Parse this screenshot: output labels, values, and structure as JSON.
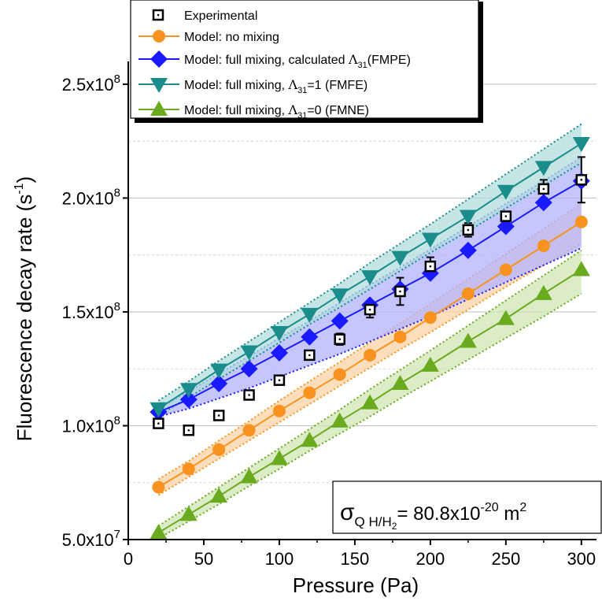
{
  "chart_data": {
    "type": "scatter",
    "xlabel": "Pressure (Pa)",
    "ylabel_main": "Fluorescence decay rate (s",
    "ylabel_sup": "-1",
    "ylabel_close": ")",
    "xlim": [
      0,
      310
    ],
    "ylim": [
      50000000.0,
      260000000.0
    ],
    "x_ticks": [
      0,
      50,
      100,
      150,
      200,
      250,
      300
    ],
    "x_tick_labels": [
      "0",
      "50",
      "100",
      "150",
      "200",
      "250",
      "300"
    ],
    "y_ticks": [
      50000000.0,
      100000000.0,
      150000000.0,
      200000000.0,
      250000000.0
    ],
    "y_tick_mantissa": [
      "5.0x10",
      "1.0x10",
      "1.5x10",
      "2.0x10",
      "2.5x10"
    ],
    "y_tick_exponent": [
      "7",
      "8",
      "8",
      "8",
      "8"
    ],
    "grid_major": true,
    "grid_minor": true,
    "legend_position": "top",
    "annotation": {
      "sigma": "σ",
      "subscript": "Q H/H",
      "subscript_2": "2",
      "equals": "= 80.8x10",
      "exponent": "-20",
      "unit": " m",
      "unit_exp": "2"
    },
    "series": [
      {
        "name": "Experimental",
        "legend_parts": [
          "Experimental"
        ],
        "marker": "square-open",
        "color": "#000000",
        "x": [
          20,
          40,
          60,
          80,
          100,
          120,
          140,
          160,
          180,
          200,
          225,
          250,
          275,
          300
        ],
        "y": [
          101000000.0,
          98000000.0,
          104500000.0,
          113500000.0,
          120000000.0,
          131000000.0,
          138000000.0,
          151000000.0,
          159000000.0,
          170000000.0,
          186000000.0,
          192000000.0,
          204000000.0,
          208000000.0
        ],
        "yerr": [
          1000000.0,
          500000.0,
          1000000.0,
          1500000.0,
          2000000.0,
          2000000.0,
          2500000.0,
          3500000.0,
          6000000.0,
          4000000.0,
          3000000.0,
          2000000.0,
          4000000.0,
          10000000.0
        ]
      },
      {
        "name": "Model: no mixing",
        "legend_parts": [
          "Model: no mixing"
        ],
        "marker": "circle",
        "color": "#f7931e",
        "band_color": "#fbd3a6",
        "band_line": "#f7931e",
        "x": [
          20,
          40,
          60,
          80,
          100,
          120,
          140,
          160,
          180,
          200,
          225,
          250,
          275,
          300
        ],
        "y": [
          73000000.0,
          81000000.0,
          89500000.0,
          98000000.0,
          106500000.0,
          114500000.0,
          122500000.0,
          131000000.0,
          139000000.0,
          147500000.0,
          158000000.0,
          168500000.0,
          179000000.0,
          189500000.0
        ],
        "band_low": [
          69500000.0,
          77500000.0,
          85500000.0,
          93500000.0,
          101500000.0,
          109500000.0,
          117500000.0,
          125500000.0,
          133500000.0,
          141000000.0,
          151000000.0,
          161000000.0,
          170500000.0,
          180000000.0
        ],
        "band_high": [
          76500000.0,
          84500000.0,
          93500000.0,
          102000000.0,
          111000000.0,
          119500000.0,
          128000000.0,
          136500000.0,
          145000000.0,
          153500000.0,
          164500000.0,
          175500000.0,
          186500000.0,
          197500000.0
        ]
      },
      {
        "name": "Model: full mixing, calculated Λ31(FMPE)",
        "legend_parts": [
          "Model: full mixing, calculated ",
          "Λ",
          "31",
          "(FMPE)"
        ],
        "marker": "diamond",
        "color": "#1a1aff",
        "band_color": "#b3b3ff",
        "band_line": "#1a1aff",
        "x": [
          20,
          40,
          60,
          80,
          100,
          120,
          140,
          160,
          180,
          200,
          225,
          250,
          275,
          300
        ],
        "y": [
          106000000.0,
          111500000.0,
          118500000.0,
          125000000.0,
          132000000.0,
          139000000.0,
          146000000.0,
          153000000.0,
          160000000.0,
          167000000.0,
          177000000.0,
          187500000.0,
          198000000.0,
          207500000.0
        ],
        "band_low": [
          104000000.0,
          107500000.0,
          112000000.0,
          116500000.0,
          121500000.0,
          126500000.0,
          131500000.0,
          137000000.0,
          142500000.0,
          148000000.0,
          155500000.0,
          163000000.0,
          170500000.0,
          178000000.0
        ],
        "band_high": [
          107500000.0,
          115000000.0,
          123000000.0,
          130500000.0,
          138500000.0,
          146000000.0,
          154000000.0,
          162000000.0,
          169500000.0,
          177500000.0,
          187500000.0,
          197500000.0,
          207500000.0,
          218000000.0
        ]
      },
      {
        "name": "Model: full mixing, Λ31=1 (FMFE)",
        "legend_parts": [
          "Model: full mixing, ",
          "Λ",
          "31",
          "=1 (FMFE)"
        ],
        "marker": "triangle-down",
        "color": "#1a8c8c",
        "band_color": "#b3dcdc",
        "band_line": "#1a8c8c",
        "x": [
          20,
          40,
          60,
          80,
          100,
          120,
          140,
          160,
          180,
          200,
          225,
          250,
          275,
          300
        ],
        "y": [
          107500000.0,
          116000000.0,
          124500000.0,
          132500000.0,
          141000000.0,
          149000000.0,
          157500000.0,
          165500000.0,
          174000000.0,
          182000000.0,
          192000000.0,
          203000000.0,
          213500000.0,
          224000000.0
        ],
        "band_low": [
          104500000.0,
          112500000.0,
          120500000.0,
          128500000.0,
          136500000.0,
          144500000.0,
          152000000.0,
          160000000.0,
          168000000.0,
          176000000.0,
          185500000.0,
          195500000.0,
          205500000.0,
          215500000.0
        ],
        "band_high": [
          111000000.0,
          119500000.0,
          128500000.0,
          137000000.0,
          145500000.0,
          154000000.0,
          162500000.0,
          171500000.0,
          180000000.0,
          188500000.0,
          199500000.0,
          210500000.0,
          221500000.0,
          232500000.0
        ]
      },
      {
        "name": "Model: full mixing, Λ31=0 (FMNE)",
        "legend_parts": [
          "Model: full mixing, ",
          "Λ",
          "31",
          "=0 (FMNE)"
        ],
        "marker": "triangle-up",
        "color": "#6aaa1e",
        "band_color": "#cfe5b3",
        "band_line": "#6aaa1e",
        "x": [
          20,
          40,
          60,
          80,
          100,
          120,
          140,
          160,
          180,
          200,
          225,
          250,
          275,
          300
        ],
        "y": [
          53000000.0,
          61000000.0,
          69000000.0,
          77500000.0,
          85500000.0,
          93500000.0,
          102000000.0,
          110000000.0,
          118500000.0,
          126500000.0,
          137000000.0,
          147000000.0,
          158000000.0,
          168500000.0
        ],
        "band_low": [
          50500000.0,
          58000000.0,
          65500000.0,
          73500000.0,
          81000000.0,
          89000000.0,
          96500000.0,
          104000000.0,
          112000000.0,
          119500000.0,
          129000000.0,
          138500000.0,
          148000000.0,
          158000000.0
        ],
        "band_high": [
          56000000.0,
          64500000.0,
          73000000.0,
          81500000.0,
          90000000.0,
          98500000.0,
          107000000.0,
          116000000.0,
          124500000.0,
          133000000.0,
          144000000.0,
          155000000.0,
          166000000.0,
          177000000.0
        ]
      }
    ]
  }
}
